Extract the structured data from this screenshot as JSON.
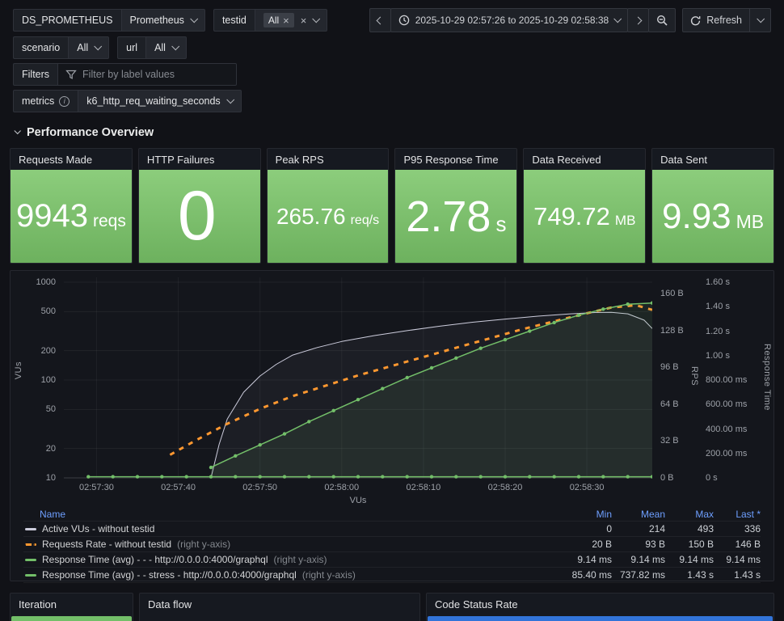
{
  "colors": {
    "stat_green": "#73bf69",
    "series_gray": "#ccccdc",
    "series_orange": "#ff9830",
    "series_green": "#73bf69",
    "legend_header_blue": "#6e9fff",
    "code_status_blue": "#3274d9"
  },
  "topbar": {
    "ds": {
      "label": "DS_PROMETHEUS",
      "value": "Prometheus"
    },
    "testid": {
      "label": "testid",
      "chip": "All"
    },
    "scenario": {
      "label": "scenario",
      "value": "All"
    },
    "url": {
      "label": "url",
      "value": "All"
    },
    "filters": {
      "label": "Filters",
      "placeholder": "Filter by label values"
    },
    "metrics": {
      "label": "metrics",
      "value": "k6_http_req_waiting_seconds"
    },
    "time_range": "2025-10-29 02:57:26 to 2025-10-29 02:58:38",
    "refresh": "Refresh"
  },
  "section_title": "Performance Overview",
  "stats": [
    {
      "title": "Requests Made",
      "value": "9943",
      "unit": "reqs"
    },
    {
      "title": "HTTP Failures",
      "value": "0",
      "unit": ""
    },
    {
      "title": "Peak RPS",
      "value": "265.76",
      "unit": "req/s"
    },
    {
      "title": "P95 Response Time",
      "value": "2.78",
      "unit": "s"
    },
    {
      "title": "Data Received",
      "value": "749.72",
      "unit": "MB"
    },
    {
      "title": "Data Sent",
      "value": "9.93",
      "unit": "MB"
    }
  ],
  "chart_data": {
    "type": "line",
    "title": "",
    "xlabel": "VUs",
    "x_start": "02:57:26",
    "x_end": "02:58:38",
    "x_domain_seconds": [
      0,
      72
    ],
    "x_ticks": [
      "02:57:30",
      "02:57:40",
      "02:57:50",
      "02:58:00",
      "02:58:10",
      "02:58:20",
      "02:58:30"
    ],
    "x_tick_seconds": [
      4,
      14,
      24,
      34,
      44,
      54,
      64
    ],
    "axes": {
      "left": {
        "label": "VUs",
        "scale": "log",
        "min": 10,
        "max": 1000,
        "ticks": [
          10,
          20,
          50,
          100,
          200,
          500,
          1000
        ]
      },
      "rps": {
        "label": "RPS",
        "scale": "linear",
        "min": 0,
        "max": 170,
        "ticks": [
          "0 B",
          "32 B",
          "64 B",
          "96 B",
          "128 B",
          "160 B"
        ],
        "tick_values": [
          0,
          32,
          64,
          96,
          128,
          160
        ]
      },
      "rt": {
        "label": "Response Time",
        "scale": "linear",
        "min": 0,
        "max": 1.6,
        "ticks": [
          "0 s",
          "200.00 ms",
          "400.00 ms",
          "600.00 ms",
          "800.00 ms",
          "1.00 s",
          "1.20 s",
          "1.40 s",
          "1.60 s"
        ],
        "tick_values": [
          0,
          0.2,
          0.4,
          0.6,
          0.8,
          1.0,
          1.2,
          1.4,
          1.6
        ]
      }
    },
    "series": [
      {
        "name": "Active VUs - without testid",
        "axis": "left",
        "color": "#ccccdc",
        "width": 1,
        "dash": null,
        "markers": false,
        "fill": "rgba(204,204,220,0.05)",
        "points": [
          [
            18,
            10
          ],
          [
            19,
            22
          ],
          [
            20,
            40
          ],
          [
            22,
            75
          ],
          [
            24,
            110
          ],
          [
            26,
            145
          ],
          [
            28,
            180
          ],
          [
            31,
            215
          ],
          [
            34,
            248
          ],
          [
            38,
            285
          ],
          [
            42,
            320
          ],
          [
            46,
            355
          ],
          [
            50,
            390
          ],
          [
            54,
            420
          ],
          [
            58,
            450
          ],
          [
            62,
            475
          ],
          [
            65,
            490
          ],
          [
            67,
            493
          ],
          [
            69,
            475
          ],
          [
            71,
            410
          ],
          [
            72,
            336
          ]
        ]
      },
      {
        "name": "Requests Rate - without testid",
        "axis": "rps",
        "color": "#ff9830",
        "width": 3,
        "dash": "6,7",
        "markers": false,
        "fill": null,
        "points": [
          [
            13,
            20
          ],
          [
            16,
            32
          ],
          [
            20,
            47
          ],
          [
            24,
            60
          ],
          [
            28,
            71
          ],
          [
            32,
            80
          ],
          [
            36,
            89
          ],
          [
            40,
            97
          ],
          [
            44,
            105
          ],
          [
            48,
            113
          ],
          [
            52,
            121
          ],
          [
            56,
            129
          ],
          [
            60,
            136
          ],
          [
            64,
            143
          ],
          [
            67,
            148
          ],
          [
            70,
            150
          ],
          [
            72,
            146
          ]
        ]
      },
      {
        "name": "Response Time (avg) - - - http://0.0.0.0:4000/graphql",
        "axis": "rt",
        "color": "#73bf69",
        "width": 1.5,
        "dash": null,
        "markers": true,
        "fill": null,
        "points": [
          [
            3,
            0.00914
          ],
          [
            6,
            0.00914
          ],
          [
            9,
            0.00914
          ],
          [
            12,
            0.00914
          ],
          [
            15,
            0.00914
          ],
          [
            18,
            0.00914
          ],
          [
            21,
            0.00914
          ],
          [
            24,
            0.00914
          ],
          [
            27,
            0.00914
          ],
          [
            30,
            0.00914
          ],
          [
            33,
            0.00914
          ],
          [
            36,
            0.00914
          ],
          [
            39,
            0.00914
          ],
          [
            42,
            0.00914
          ],
          [
            45,
            0.00914
          ],
          [
            48,
            0.00914
          ],
          [
            51,
            0.00914
          ],
          [
            54,
            0.00914
          ],
          [
            57,
            0.00914
          ],
          [
            60,
            0.00914
          ],
          [
            63,
            0.00914
          ],
          [
            66,
            0.00914
          ],
          [
            69,
            0.00914
          ],
          [
            72,
            0.00914
          ]
        ]
      },
      {
        "name": "Response Time (avg) - - stress - http://0.0.0.0:4000/graphql",
        "axis": "rt",
        "color": "#73bf69",
        "width": 1.5,
        "dash": null,
        "markers": true,
        "fill": "rgba(115,191,105,0.10)",
        "points": [
          [
            18,
            0.085
          ],
          [
            21,
            0.18
          ],
          [
            24,
            0.27
          ],
          [
            27,
            0.36
          ],
          [
            30,
            0.46
          ],
          [
            33,
            0.55
          ],
          [
            36,
            0.64
          ],
          [
            39,
            0.73
          ],
          [
            42,
            0.82
          ],
          [
            45,
            0.9
          ],
          [
            48,
            0.98
          ],
          [
            51,
            1.06
          ],
          [
            54,
            1.13
          ],
          [
            57,
            1.2
          ],
          [
            60,
            1.27
          ],
          [
            63,
            1.33
          ],
          [
            66,
            1.38
          ],
          [
            69,
            1.42
          ],
          [
            72,
            1.43
          ]
        ]
      }
    ]
  },
  "legend": {
    "headers": {
      "name": "Name",
      "min": "Min",
      "mean": "Mean",
      "max": "Max",
      "last": "Last *"
    },
    "rows": [
      {
        "name": "Active VUs - without testid",
        "suffix": "",
        "min": "0",
        "mean": "214",
        "max": "493",
        "last": "336"
      },
      {
        "name": "Requests Rate - without testid",
        "suffix": " (right y-axis)",
        "min": "20 B",
        "mean": "93 B",
        "max": "150 B",
        "last": "146 B"
      },
      {
        "name": "Response Time (avg) - - - http://0.0.0.0:4000/graphql",
        "suffix": " (right y-axis)",
        "min": "9.14 ms",
        "mean": "9.14 ms",
        "max": "9.14 ms",
        "last": "9.14 ms"
      },
      {
        "name": "Response Time (avg) - - stress - http://0.0.0.0:4000/graphql",
        "suffix": " (right y-axis)",
        "min": "85.40 ms",
        "mean": "737.82 ms",
        "max": "1.43 s",
        "last": "1.43 s"
      }
    ]
  },
  "bottom": {
    "panels": [
      {
        "title": "Iteration"
      },
      {
        "title": "Data flow"
      },
      {
        "title": "Code Status Rate"
      }
    ]
  }
}
